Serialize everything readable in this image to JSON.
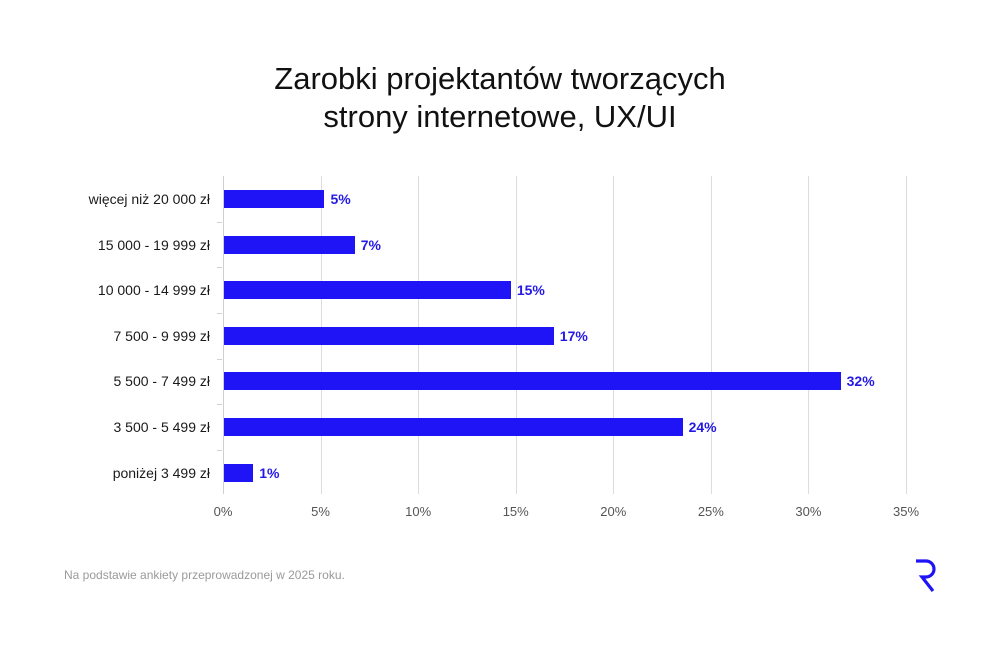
{
  "chart_data": {
    "type": "bar",
    "orientation": "horizontal",
    "title": "Zarobki projektantów tworzących strony internetowe, UX/UI",
    "title_lines": [
      "Zarobki projektantów tworzących",
      "strony internetowe, UX/UI"
    ],
    "xlabel": "",
    "ylabel": "",
    "categories": [
      "więcej niż 20 000 zł",
      "15 000 - 19 999 zł",
      "10 000 - 14 999 zł",
      "7 500 - 9 999 zł",
      "5 500 - 7 499 zł",
      "3 500 - 5 499 zł",
      "poniżej 3 499 zł"
    ],
    "values": [
      5,
      7,
      15,
      17,
      32,
      24,
      1
    ],
    "bar_lengths_measured": [
      5.15,
      6.7,
      14.7,
      16.9,
      31.6,
      23.5,
      1.5
    ],
    "value_labels": [
      "5%",
      "7%",
      "15%",
      "17%",
      "32%",
      "24%",
      "1%"
    ],
    "xlim": [
      0,
      35
    ],
    "xticks": [
      0,
      5,
      10,
      15,
      20,
      25,
      30,
      35
    ],
    "xtick_labels": [
      "0%",
      "5%",
      "10%",
      "15%",
      "20%",
      "25%",
      "30%",
      "35%"
    ],
    "grid": "vertical",
    "legend": null,
    "bar_color": "#1f14f5",
    "label_color": "#2418e6"
  },
  "footnote": "Na podstawie ankiety przeprowadzonej w 2025 roku.",
  "logo": {
    "glyph": "R",
    "color": "#1f14f5"
  }
}
